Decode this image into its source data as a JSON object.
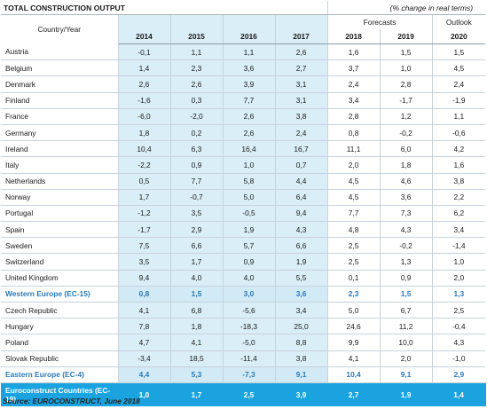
{
  "title": "TOTAL CONSTRUCTION OUTPUT",
  "subtitle": "(% change in real terms)",
  "col_header_country": "Country/Year",
  "forecasts_label": "Forecasts",
  "outlook_label": "Outlook",
  "years": [
    "2014",
    "2015",
    "2016",
    "2017",
    "2018",
    "2019",
    "2020"
  ],
  "rows": [
    {
      "name": "Austria",
      "values": [
        "-0,1",
        "1,1",
        "1,1",
        "2,6",
        "1,6",
        "1,5",
        "1,5"
      ]
    },
    {
      "name": "Belgium",
      "values": [
        "1,4",
        "2,3",
        "3,6",
        "2,7",
        "3,7",
        "1,0",
        "4,5"
      ]
    },
    {
      "name": "Denmark",
      "values": [
        "2,6",
        "2,6",
        "3,9",
        "3,1",
        "2,4",
        "2,8",
        "2,4"
      ]
    },
    {
      "name": "Finland",
      "values": [
        "-1,6",
        "0,3",
        "7,7",
        "3,1",
        "3,4",
        "-1,7",
        "-1,9"
      ]
    },
    {
      "name": "France",
      "values": [
        "-6,0",
        "-2,0",
        "2,6",
        "3,8",
        "2,8",
        "1,2",
        "1,1"
      ]
    },
    {
      "name": "Germany",
      "values": [
        "1,8",
        "0,2",
        "2,6",
        "2,4",
        "0,8",
        "-0,2",
        "-0,6"
      ]
    },
    {
      "name": "Ireland",
      "values": [
        "10,4",
        "6,3",
        "16,4",
        "16,7",
        "11,1",
        "6,0",
        "4,2"
      ]
    },
    {
      "name": "Italy",
      "values": [
        "-2,2",
        "0,9",
        "1,0",
        "0,7",
        "2,0",
        "1,8",
        "1,6"
      ]
    },
    {
      "name": "Netherlands",
      "values": [
        "0,5",
        "7,7",
        "5,8",
        "4,4",
        "4,5",
        "4,6",
        "3,8"
      ]
    },
    {
      "name": "Norway",
      "values": [
        "1,7",
        "-0,7",
        "5,0",
        "6,4",
        "4,5",
        "3,6",
        "2,2"
      ]
    },
    {
      "name": "Portugal",
      "values": [
        "-1,2",
        "3,5",
        "-0,5",
        "9,4",
        "7,7",
        "7,3",
        "6,2"
      ]
    },
    {
      "name": "Spain",
      "values": [
        "-1,7",
        "2,9",
        "1,9",
        "4,3",
        "4,8",
        "4,3",
        "3,4"
      ]
    },
    {
      "name": "Sweden",
      "values": [
        "7,5",
        "6,6",
        "5,7",
        "6,6",
        "2,5",
        "-0,2",
        "-1,4"
      ]
    },
    {
      "name": "Switzerland",
      "values": [
        "3,5",
        "1,7",
        "0,9",
        "1,9",
        "2,5",
        "1,3",
        "1,0"
      ]
    },
    {
      "name": "United Kingdom",
      "values": [
        "9,4",
        "4,0",
        "4,0",
        "5,5",
        "0,1",
        "0,9",
        "2,0"
      ]
    },
    {
      "name": "Western Europe (EC-15)",
      "region": true,
      "values": [
        "0,8",
        "1,5",
        "3,0",
        "3,6",
        "2,3",
        "1,5",
        "1,3"
      ]
    },
    {
      "name": "Czech Republic",
      "values": [
        "4,1",
        "6,8",
        "-5,6",
        "3,4",
        "5,0",
        "6,7",
        "2,5"
      ]
    },
    {
      "name": "Hungary",
      "values": [
        "7,8",
        "1,8",
        "-18,3",
        "25,0",
        "24,6",
        "11,2",
        "-0,4"
      ]
    },
    {
      "name": "Poland",
      "values": [
        "4,7",
        "4,1",
        "-5,0",
        "8,8",
        "9,9",
        "10,0",
        "4,3"
      ]
    },
    {
      "name": "Slovak Republic",
      "values": [
        "-3,4",
        "18,5",
        "-11,4",
        "3,8",
        "4,1",
        "2,0",
        "-1,0"
      ]
    },
    {
      "name": "Eastern Europe (EC-4)",
      "region": true,
      "values": [
        "4,4",
        "5,3",
        "-7,3",
        "9,1",
        "10,4",
        "9,1",
        "2,9"
      ]
    }
  ],
  "total": {
    "name": "Euroconstruct Countries (EC-19)",
    "values": [
      "1,0",
      "1,7",
      "2,5",
      "3,9",
      "2,7",
      "1,9",
      "1,4"
    ]
  },
  "source": "Source: EUROCONSTRUCT, June 2018",
  "colors": {
    "shade": "#daeef7",
    "region_text": "#2a7ab8",
    "total_bg": "#1aa3df"
  }
}
